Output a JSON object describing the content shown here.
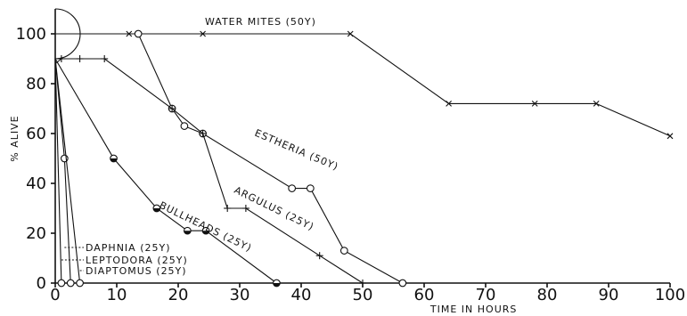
{
  "chart_data": {
    "type": "line",
    "title": "",
    "xlabel": "TIME IN HOURS",
    "ylabel": "% ALIVE",
    "xlim": [
      0,
      100
    ],
    "ylim": [
      0,
      110
    ],
    "xticks": [
      0,
      10,
      20,
      30,
      40,
      50,
      60,
      70,
      80,
      90,
      100
    ],
    "yticks": [
      0,
      20,
      40,
      60,
      80,
      100
    ],
    "grid": false,
    "legend": "none",
    "series": [
      {
        "name": "WATER MITES (50Y)",
        "marker": "x",
        "x": [
          0,
          12,
          24,
          48,
          64,
          78,
          88,
          100
        ],
        "y": [
          100,
          100,
          100,
          100,
          72,
          72,
          72,
          59
        ]
      },
      {
        "name": "ESTHERIA (50Y)",
        "marker": "o",
        "x": [
          0,
          13.5,
          19,
          21,
          24,
          38.5,
          41.5,
          47,
          56.5
        ],
        "y": [
          100,
          100,
          70,
          63,
          60,
          38,
          38,
          13,
          0
        ]
      },
      {
        "name": "ARGULUS (25Y)",
        "marker": "+",
        "x": [
          0,
          1,
          4,
          8,
          19,
          24,
          28,
          31,
          43,
          50
        ],
        "y": [
          88,
          90,
          90,
          90,
          70,
          60,
          30,
          30,
          11,
          0
        ]
      },
      {
        "name": "BULLHEADS (25Y)",
        "marker": "half-o",
        "x": [
          0,
          9.5,
          16.5,
          21.5,
          24.5,
          36
        ],
        "y": [
          90,
          50,
          30,
          21,
          21,
          0
        ]
      },
      {
        "name": "DAPHNIA (25Y)",
        "marker": "o",
        "x": [
          0,
          1.5,
          2.5
        ],
        "y": [
          90,
          50,
          0
        ]
      },
      {
        "name": "LEPTODORA (25Y)",
        "marker": "o",
        "x": [
          0,
          1
        ],
        "y": [
          90,
          0
        ]
      },
      {
        "name": "DIAPTOMUS (25Y)",
        "marker": "o",
        "x": [
          0,
          4
        ],
        "y": [
          90,
          0
        ]
      }
    ]
  }
}
